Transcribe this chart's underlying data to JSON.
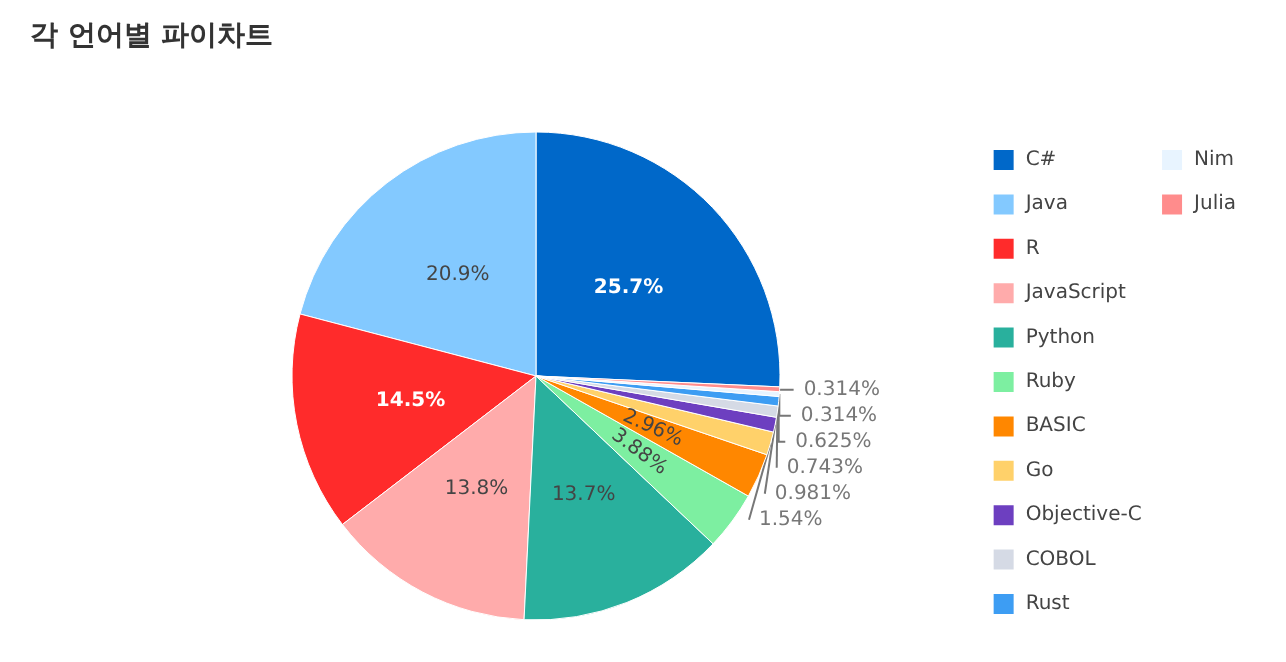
{
  "chart_data": {
    "type": "pie",
    "title": "각 언어별 파이차트",
    "categories": [
      "C#",
      "Java",
      "R",
      "JavaScript",
      "Python",
      "Ruby",
      "BASIC",
      "Go",
      "Objective-C",
      "COBOL",
      "Rust",
      "Nim",
      "Julia"
    ],
    "values": [
      25.7,
      20.9,
      14.5,
      13.8,
      13.7,
      3.88,
      2.96,
      1.54,
      0.981,
      0.743,
      0.625,
      0.314,
      0.314
    ],
    "value_labels": [
      "25.7%",
      "20.9%",
      "14.5%",
      "13.8%",
      "13.7%",
      "3.88%",
      "2.96%",
      "1.54%",
      "0.981%",
      "0.743%",
      "0.625%",
      "0.314%",
      "0.314%"
    ],
    "colors": [
      "#0068c9",
      "#83c9ff",
      "#ff2b2b",
      "#ffabab",
      "#29b09d",
      "#7defa1",
      "#ff8700",
      "#ffd16a",
      "#6d3fc0",
      "#d5dae5",
      "#3d9df3",
      "#e8f4ff",
      "#ff8c8c"
    ],
    "legend": "right"
  }
}
